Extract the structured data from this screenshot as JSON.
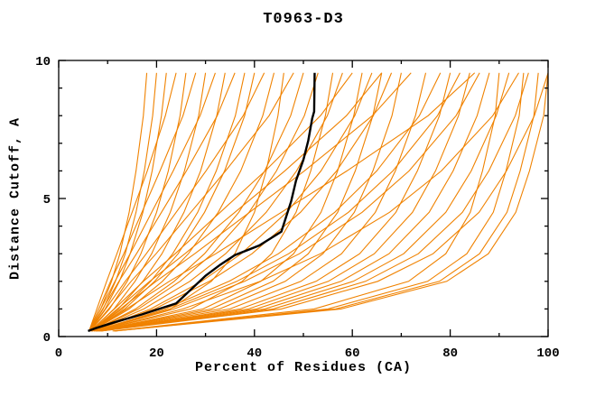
{
  "window": {
    "background": "#ffffff"
  },
  "colors": {
    "ensemble": "#F08200",
    "highlight": "#000000",
    "axis": "#000000",
    "background": "#ffffff"
  },
  "chart_data": {
    "type": "line",
    "title": "T0963-D3",
    "xlabel": "Percent of Residues (CA)",
    "ylabel": "Distance Cutoff, A",
    "xlim": [
      0,
      100
    ],
    "ylim": [
      0,
      10
    ],
    "grid": false,
    "legend": null,
    "x_ticks": {
      "values": [
        0,
        20,
        40,
        60,
        80,
        100
      ],
      "labels": [
        "0",
        "20",
        "40",
        "60",
        "80",
        "100"
      ],
      "minor_step": 10
    },
    "y_ticks": {
      "values": [
        0,
        5,
        10
      ],
      "labels": [
        "0",
        "5",
        "10"
      ],
      "minor_step": 1
    },
    "highlight_series": {
      "name": "evaluated-model",
      "color": "#000000",
      "points": [
        [
          6,
          0.2
        ],
        [
          7.5,
          0.3
        ],
        [
          12,
          0.55
        ],
        [
          17,
          0.8
        ],
        [
          24,
          1.2
        ],
        [
          27,
          1.7
        ],
        [
          30,
          2.2
        ],
        [
          33,
          2.6
        ],
        [
          36,
          2.95
        ],
        [
          41,
          3.3
        ],
        [
          45.5,
          3.8
        ],
        [
          46.5,
          4.35
        ],
        [
          47.5,
          4.9
        ],
        [
          48.5,
          5.65
        ],
        [
          50,
          6.4
        ],
        [
          51,
          7.1
        ],
        [
          51.8,
          7.9
        ],
        [
          52.2,
          8.15
        ],
        [
          52.3,
          9.55
        ]
      ]
    },
    "ensemble": {
      "name": "other-models",
      "color": "#F08200",
      "y_levels": [
        0.2,
        1,
        2,
        3,
        4.5,
        6,
        8,
        9.55
      ],
      "series_x": [
        [
          6.2,
          8.6,
          10.8,
          12.5,
          14.4,
          15.8,
          17.3,
          18
        ],
        [
          6.3,
          9.1,
          11.6,
          13.6,
          15.8,
          17.5,
          19.2,
          20
        ],
        [
          6.3,
          9.5,
          12.4,
          14.6,
          17.2,
          19.1,
          21,
          22
        ],
        [
          6.2,
          7.8,
          9.8,
          11.9,
          15,
          18.1,
          21.8,
          24
        ],
        [
          6.4,
          10.4,
          14,
          16.8,
          20,
          22.4,
          24.8,
          26
        ],
        [
          6.2,
          8.2,
          10.6,
          13.3,
          17,
          20.7,
          25.4,
          28
        ],
        [
          6.5,
          11.3,
          15.6,
          19,
          22.8,
          25.7,
          28.6,
          30
        ],
        [
          6.3,
          8.6,
          11.5,
          14.6,
          19,
          23.4,
          28.9,
          32
        ],
        [
          6.6,
          12.2,
          17.2,
          21.1,
          25.6,
          29,
          32.3,
          34
        ],
        [
          6.3,
          9,
          12.3,
          15.9,
          21,
          26.1,
          32.4,
          36
        ],
        [
          6.6,
          13,
          18.8,
          23.3,
          28.4,
          32.2,
          36.1,
          38
        ],
        [
          6.7,
          13.5,
          19.6,
          24.4,
          29.8,
          33.9,
          38,
          40
        ],
        [
          6.4,
          9.6,
          13.6,
          17.9,
          24,
          30.1,
          37.7,
          42
        ],
        [
          6.8,
          14.4,
          21.2,
          26.5,
          32.6,
          37.2,
          41.7,
          44
        ],
        [
          7.2,
          22.8,
          31.2,
          36,
          40,
          42.4,
          44.8,
          46
        ],
        [
          6.4,
          10.2,
          14.8,
          19.9,
          27,
          34.1,
          43,
          48
        ],
        [
          6.9,
          15.7,
          23.6,
          29.8,
          36.8,
          42.1,
          47.4,
          50
        ],
        [
          6.9,
          16.3,
          24.8,
          31.4,
          38.9,
          44.5,
          50.2,
          53
        ],
        [
          7.5,
          27,
          37.5,
          43.5,
          48.5,
          51.5,
          54.5,
          56
        ],
        [
          7,
          17.4,
          26.8,
          34.1,
          42.4,
          48.6,
          54.9,
          58
        ],
        [
          6.5,
          11.4,
          17.3,
          23.8,
          33,
          42.2,
          53.5,
          60
        ],
        [
          7.7,
          29.5,
          41.3,
          48,
          53.6,
          57,
          60.3,
          62
        ],
        [
          7.2,
          18.8,
          29.2,
          37.3,
          46.6,
          53.6,
          60.5,
          64
        ],
        [
          7.8,
          31.2,
          43.8,
          51,
          57,
          60.6,
          64.2,
          66
        ],
        [
          7.2,
          19.6,
          30.8,
          39.5,
          49.4,
          56.8,
          64.3,
          68
        ],
        [
          7.9,
          32.9,
          46.3,
          54,
          60.4,
          64.2,
          68.1,
          70
        ],
        [
          6.7,
          12.6,
          19.9,
          27.8,
          39,
          50.2,
          64.1,
          72
        ],
        [
          8.1,
          35,
          49.5,
          57.8,
          64.7,
          68.8,
          72.9,
          75
        ],
        [
          7.4,
          21.8,
          34.8,
          44.9,
          56.4,
          65,
          73.7,
          78
        ],
        [
          8.2,
          37.1,
          52.6,
          61.5,
          68.9,
          73.3,
          77.8,
          80
        ],
        [
          7.5,
          22.7,
          36.4,
          47,
          59.2,
          68.3,
          77.4,
          82
        ],
        [
          8.3,
          38.8,
          55.1,
          64.5,
          72.3,
          77,
          81.7,
          84
        ],
        [
          7.6,
          23.6,
          38,
          49.2,
          62,
          71.6,
          81.2,
          86
        ],
        [
          8.5,
          40.4,
          57.7,
          67.5,
          75.7,
          80.6,
          85.5,
          88
        ],
        [
          11,
          52.2,
          71.5,
          79.1,
          84.1,
          86.6,
          89.2,
          90
        ],
        [
          8.6,
          42.1,
          60.2,
          70.5,
          79.1,
          84.3,
          89.4,
          92
        ],
        [
          7.8,
          25.4,
          41.2,
          53.5,
          67.6,
          78.2,
          88.7,
          94
        ],
        [
          11.3,
          55,
          75.4,
          83.4,
          88.8,
          91.4,
          94.1,
          95
        ],
        [
          8.7,
          43.8,
          62.7,
          73.5,
          82.5,
          87.9,
          93.3,
          96
        ],
        [
          11.5,
          56.6,
          77.8,
          86,
          91.6,
          94.3,
          97.1,
          98
        ],
        [
          8.8,
          45.5,
          65.2,
          76.5,
          85.9,
          91.5,
          97.2,
          100
        ],
        [
          11.6,
          57.7,
          79.3,
          87.8,
          93.4,
          96.2,
          99.1,
          100
        ],
        [
          6.6,
          12,
          18.6,
          25.8,
          36,
          46.2,
          58.8,
          66
        ],
        [
          6.8,
          13.9,
          22.6,
          32.1,
          45.5,
          58.9,
          75.5,
          85
        ]
      ]
    }
  }
}
